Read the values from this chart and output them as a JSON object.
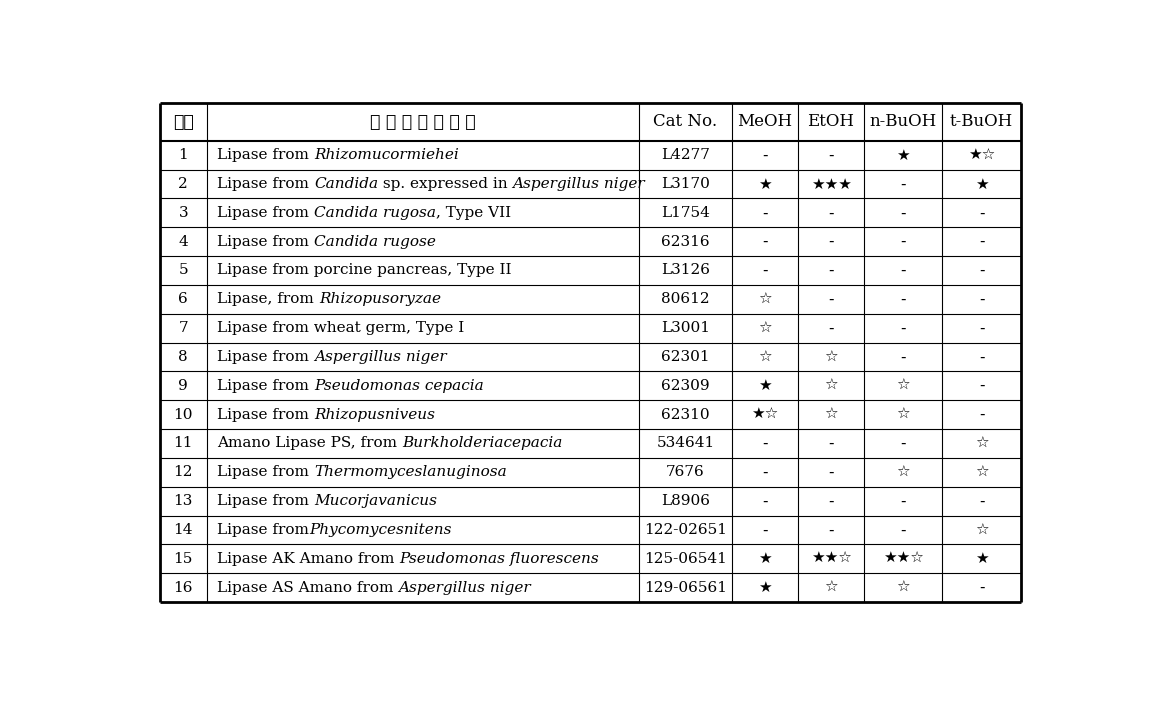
{
  "header": [
    "순번",
    "물 품 명 세 및 규 격",
    "Cat No.",
    "MeOH",
    "EtOH",
    "n-BuOH",
    "t-BuOH"
  ],
  "rows": [
    {
      "num": "1",
      "cat": "L4277",
      "MeOH": "-",
      "EtOH": "-",
      "nBuOH": "★",
      "tBuOH": "★☆",
      "name_parts": [
        [
          "Lipase from ",
          false
        ],
        [
          "Rhizomucormiehei",
          true
        ]
      ]
    },
    {
      "num": "2",
      "cat": "L3170",
      "MeOH": "★",
      "EtOH": "★★★",
      "nBuOH": "-",
      "tBuOH": "★",
      "name_parts": [
        [
          "Lipase from ",
          false
        ],
        [
          "Candida",
          true
        ],
        [
          " sp. expressed in ",
          false
        ],
        [
          "Aspergillus niger",
          true
        ]
      ]
    },
    {
      "num": "3",
      "cat": "L1754",
      "MeOH": "-",
      "EtOH": "-",
      "nBuOH": "-",
      "tBuOH": "-",
      "name_parts": [
        [
          "Lipase from ",
          false
        ],
        [
          "Candida rugosa",
          true
        ],
        [
          ", Type VII",
          false
        ]
      ]
    },
    {
      "num": "4",
      "cat": "62316",
      "MeOH": "-",
      "EtOH": "-",
      "nBuOH": "-",
      "tBuOH": "-",
      "name_parts": [
        [
          "Lipase from ",
          false
        ],
        [
          "Candida rugose",
          true
        ]
      ]
    },
    {
      "num": "5",
      "cat": "L3126",
      "MeOH": "-",
      "EtOH": "-",
      "nBuOH": "-",
      "tBuOH": "-",
      "name_parts": [
        [
          "Lipase from porcine pancreas, Type II",
          false
        ]
      ]
    },
    {
      "num": "6",
      "cat": "80612",
      "MeOH": "☆",
      "EtOH": "-",
      "nBuOH": "-",
      "tBuOH": "-",
      "name_parts": [
        [
          "Lipase, from ",
          false
        ],
        [
          "Rhizopusoryzae",
          true
        ]
      ]
    },
    {
      "num": "7",
      "cat": "L3001",
      "MeOH": "☆",
      "EtOH": "-",
      "nBuOH": "-",
      "tBuOH": "-",
      "name_parts": [
        [
          "Lipase from wheat germ, Type I",
          false
        ]
      ]
    },
    {
      "num": "8",
      "cat": "62301",
      "MeOH": "☆",
      "EtOH": "☆",
      "nBuOH": "-",
      "tBuOH": "-",
      "name_parts": [
        [
          "Lipase from ",
          false
        ],
        [
          "Aspergillus niger",
          true
        ]
      ]
    },
    {
      "num": "9",
      "cat": "62309",
      "MeOH": "★",
      "EtOH": "☆",
      "nBuOH": "☆",
      "tBuOH": "-",
      "name_parts": [
        [
          "Lipase from ",
          false
        ],
        [
          "Pseudomonas cepacia",
          true
        ]
      ]
    },
    {
      "num": "10",
      "cat": "62310",
      "MeOH": "★☆",
      "EtOH": "☆",
      "nBuOH": "☆",
      "tBuOH": "-",
      "name_parts": [
        [
          "Lipase from ",
          false
        ],
        [
          "Rhizopusniveus",
          true
        ]
      ]
    },
    {
      "num": "11",
      "cat": "534641",
      "MeOH": "-",
      "EtOH": "-",
      "nBuOH": "-",
      "tBuOH": "☆",
      "name_parts": [
        [
          "Amano Lipase PS, from ",
          false
        ],
        [
          "Burkholderiacepacia",
          true
        ]
      ]
    },
    {
      "num": "12",
      "cat": "7676",
      "MeOH": "-",
      "EtOH": "-",
      "nBuOH": "☆",
      "tBuOH": "☆",
      "name_parts": [
        [
          "Lipase from ",
          false
        ],
        [
          "Thermomyceslanuginosa",
          true
        ]
      ]
    },
    {
      "num": "13",
      "cat": "L8906",
      "MeOH": "-",
      "EtOH": "-",
      "nBuOH": "-",
      "tBuOH": "-",
      "name_parts": [
        [
          "Lipase from ",
          false
        ],
        [
          "Mucorjavanicus",
          true
        ]
      ]
    },
    {
      "num": "14",
      "cat": "122-02651",
      "MeOH": "-",
      "EtOH": "-",
      "nBuOH": "-",
      "tBuOH": "☆",
      "name_parts": [
        [
          "Lipase from",
          false
        ],
        [
          "Phycomycesnitens",
          true
        ]
      ]
    },
    {
      "num": "15",
      "cat": "125-06541",
      "MeOH": "★",
      "EtOH": "★★☆",
      "nBuOH": "★★☆",
      "tBuOH": "★",
      "name_parts": [
        [
          "Lipase AK Amano from ",
          false
        ],
        [
          "Pseudomonas fluorescens",
          true
        ]
      ]
    },
    {
      "num": "16",
      "cat": "129-06561",
      "MeOH": "★",
      "EtOH": "☆",
      "nBuOH": "☆",
      "tBuOH": "-",
      "name_parts": [
        [
          "Lipase AS Amano from ",
          false
        ],
        [
          "Aspergillus niger",
          true
        ]
      ]
    }
  ],
  "bg_color": "#ffffff",
  "border_color": "#000000",
  "font_size": 11.0,
  "header_font_size": 12.0,
  "korean_font_size": 12.5
}
